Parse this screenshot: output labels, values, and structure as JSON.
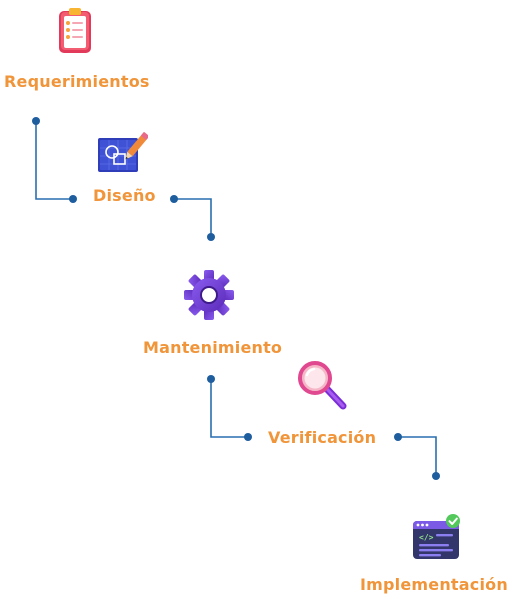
{
  "colors": {
    "label": "#f0953a",
    "connector": "#2a6fb0",
    "node": "#1f5e9e"
  },
  "stages": [
    {
      "id": "requerimientos",
      "label": "Requerimientos",
      "icon": "clipboard-checklist-icon"
    },
    {
      "id": "diseno",
      "label": "Diseño",
      "icon": "blueprint-pencil-icon"
    },
    {
      "id": "mantenimiento",
      "label": "Mantenimiento",
      "icon": "gear-icon"
    },
    {
      "id": "verificacion",
      "label": "Verificación",
      "icon": "magnifying-glass-icon"
    },
    {
      "id": "implementacion",
      "label": "Implementación",
      "icon": "code-editor-check-icon"
    }
  ]
}
